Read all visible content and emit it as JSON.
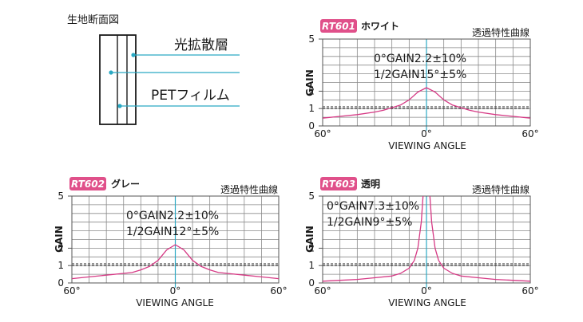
{
  "cross_section": {
    "title": "生地断面図",
    "labels": [
      "光拡散層",
      "PETフィルム"
    ]
  },
  "colors": {
    "badge": "#e0508a",
    "curve": "#d63a85",
    "axis_accent": "#2aa9c4",
    "leader": "#2aa9c4",
    "grid": "#8a8a8a",
    "dashed": "#2a2a2a"
  },
  "chart_data": [
    {
      "type": "line",
      "badge": "RT601",
      "name": "ホワイト",
      "curve_title": "透過特性曲線",
      "xlabel": "VIEWING ANGLE",
      "ylabel": "GAIN",
      "xlim": [
        -60,
        60
      ],
      "ylim": [
        0,
        5
      ],
      "x_tick_labels": [
        "60°",
        "0°",
        "60°"
      ],
      "y_tick_labels": [
        "0",
        "1",
        "2",
        "5"
      ],
      "annotations": [
        "0°GAIN2.2±10%",
        "1/2GAIN15°±5%"
      ],
      "reference_lines": [
        1.0,
        1.1
      ],
      "x": [
        -60,
        -50,
        -40,
        -30,
        -25,
        -20,
        -15,
        -10,
        -5,
        0,
        5,
        10,
        15,
        20,
        25,
        30,
        40,
        50,
        60
      ],
      "y": [
        0.45,
        0.55,
        0.65,
        0.8,
        0.9,
        1.05,
        1.2,
        1.5,
        1.95,
        2.2,
        1.95,
        1.5,
        1.2,
        1.05,
        0.9,
        0.8,
        0.65,
        0.55,
        0.45
      ]
    },
    {
      "type": "line",
      "badge": "RT602",
      "name": "グレー",
      "curve_title": "透過特性曲線",
      "xlabel": "VIEWING ANGLE",
      "ylabel": "GAIN",
      "xlim": [
        -60,
        60
      ],
      "ylim": [
        0,
        5
      ],
      "x_tick_labels": [
        "60°",
        "0°",
        "60°"
      ],
      "y_tick_labels": [
        "0",
        "1",
        "2",
        "5"
      ],
      "annotations": [
        "0°GAIN2.2±10%",
        "1/2GAIN12°±5%"
      ],
      "reference_lines": [
        1.0,
        1.1
      ],
      "x": [
        -60,
        -50,
        -40,
        -30,
        -25,
        -20,
        -15,
        -10,
        -5,
        0,
        5,
        10,
        15,
        20,
        25,
        30,
        40,
        50,
        60
      ],
      "y": [
        0.25,
        0.35,
        0.45,
        0.55,
        0.6,
        0.75,
        0.95,
        1.3,
        1.9,
        2.2,
        1.9,
        1.3,
        0.95,
        0.75,
        0.6,
        0.55,
        0.45,
        0.35,
        0.25
      ]
    },
    {
      "type": "line",
      "badge": "RT603",
      "name": "透明",
      "curve_title": "透過特性曲線",
      "xlabel": "VIEWING ANGLE",
      "ylabel": "GAIN",
      "xlim": [
        -60,
        60
      ],
      "ylim": [
        0,
        5
      ],
      "x_tick_labels": [
        "60°",
        "0°",
        "60°"
      ],
      "y_tick_labels": [
        "0",
        "1",
        "2",
        "5"
      ],
      "annotations": [
        "0°GAIN7.3±10%",
        "1/2GAIN9°±5%"
      ],
      "reference_lines": [
        1.0,
        1.1
      ],
      "x": [
        -60,
        -50,
        -40,
        -30,
        -20,
        -15,
        -10,
        -7,
        -5,
        -3,
        -2,
        0,
        2,
        3,
        5,
        7,
        10,
        15,
        20,
        30,
        40,
        50,
        60
      ],
      "y": [
        0.1,
        0.15,
        0.2,
        0.3,
        0.4,
        0.55,
        0.85,
        1.3,
        2.0,
        3.5,
        5.0,
        7.3,
        5.0,
        3.5,
        2.0,
        1.3,
        0.85,
        0.55,
        0.4,
        0.3,
        0.2,
        0.15,
        0.1
      ]
    }
  ]
}
